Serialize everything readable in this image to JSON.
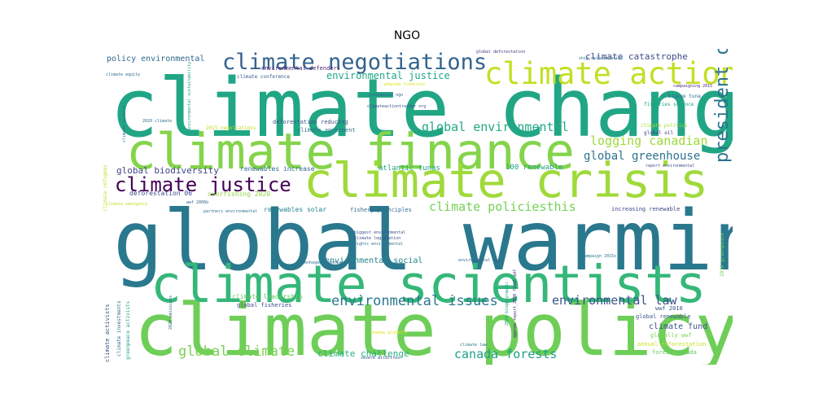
{
  "chart_data": {
    "type": "wordcloud",
    "title": "NGO",
    "colormap": "viridis",
    "background": "#ffffff",
    "words": [
      {
        "text": "global warming",
        "weight": 1.0,
        "color": "#2a788e",
        "rotated": false
      },
      {
        "text": "climate change",
        "weight": 0.97,
        "color": "#21a685",
        "rotated": false
      },
      {
        "text": "climate policy",
        "weight": 0.86,
        "color": "#6ece58",
        "rotated": false
      },
      {
        "text": "climate scientists",
        "weight": 0.62,
        "color": "#35b779",
        "rotated": false
      },
      {
        "text": "climate finance",
        "weight": 0.6,
        "color": "#84d44b",
        "rotated": false
      },
      {
        "text": "climate crisis",
        "weight": 0.58,
        "color": "#9fda3a",
        "rotated": false
      },
      {
        "text": "climate action",
        "weight": 0.36,
        "color": "#c2df23",
        "rotated": false
      },
      {
        "text": "climate negotiations",
        "weight": 0.26,
        "color": "#33638d",
        "rotated": false
      },
      {
        "text": "climate justice",
        "weight": 0.24,
        "color": "#440154",
        "rotated": false
      },
      {
        "text": "president obama",
        "weight": 0.22,
        "color": "#2c728e",
        "rotated": true
      },
      {
        "text": "environmental issues",
        "weight": 0.17,
        "color": "#2a788e",
        "rotated": false
      },
      {
        "text": "global climate",
        "weight": 0.17,
        "color": "#7ad151",
        "rotated": false
      },
      {
        "text": "climate policiesthis",
        "weight": 0.15,
        "color": "#75d054",
        "rotated": false
      },
      {
        "text": "logging canadian",
        "weight": 0.15,
        "color": "#9dd93b",
        "rotated": false
      },
      {
        "text": "global environmental",
        "weight": 0.15,
        "color": "#22a884",
        "rotated": false
      },
      {
        "text": "environmental law",
        "weight": 0.15,
        "color": "#3b528b",
        "rotated": false
      },
      {
        "text": "canada forests",
        "weight": 0.15,
        "color": "#1f9e89",
        "rotated": false
      },
      {
        "text": "global greenhouse",
        "weight": 0.14,
        "color": "#2c728e",
        "rotated": false
      },
      {
        "text": "environmental justice",
        "weight": 0.12,
        "color": "#22a884",
        "rotated": false
      },
      {
        "text": "climate catastrophe",
        "weight": 0.11,
        "color": "#3e4a89",
        "rotated": false
      },
      {
        "text": "climate challenge",
        "weight": 0.11,
        "color": "#29af7f",
        "rotated": false
      },
      {
        "text": "global biodiversity",
        "weight": 0.11,
        "color": "#404688",
        "rotated": false
      },
      {
        "text": "climate fund",
        "weight": 0.1,
        "color": "#3b528b",
        "rotated": false
      },
      {
        "text": "environmental social",
        "weight": 0.1,
        "color": "#25848e",
        "rotated": false
      },
      {
        "text": "policy environmental",
        "weight": 0.1,
        "color": "#31688e",
        "rotated": false
      },
      {
        "text": "100 renewable",
        "weight": 0.09,
        "color": "#1fa187",
        "rotated": false
      },
      {
        "text": "atlantic tunas",
        "weight": 0.09,
        "color": "#20a486",
        "rotated": false
      },
      {
        "text": "renewables increase",
        "weight": 0.08,
        "color": "#31688e",
        "rotated": false
      },
      {
        "text": "climate leadership",
        "weight": 0.08,
        "color": "#5ec962",
        "rotated": false
      },
      {
        "text": "overfishing 2020",
        "weight": 0.08,
        "color": "#8fd744",
        "rotated": false
      },
      {
        "text": "deforestation 06",
        "weight": 0.08,
        "color": "#3e4a89",
        "rotated": false
      },
      {
        "text": "renewables solar",
        "weight": 0.08,
        "color": "#26828e",
        "rotated": false
      },
      {
        "text": "global fisheries",
        "weight": 0.07,
        "color": "#3e4a89",
        "rotated": false
      },
      {
        "text": "deforestation reducing",
        "weight": 0.07,
        "color": "#3b528b",
        "rotated": false
      },
      {
        "text": "climate agreement",
        "weight": 0.07,
        "color": "#2c728e",
        "rotated": false
      },
      {
        "text": "fishery principles",
        "weight": 0.07,
        "color": "#31688e",
        "rotated": false
      },
      {
        "text": "increasing renewable",
        "weight": 0.07,
        "color": "#404688",
        "rotated": false
      },
      {
        "text": "wwf 2010",
        "weight": 0.07,
        "color": "#3b528b",
        "rotated": false
      },
      {
        "text": "global renewable",
        "weight": 0.07,
        "color": "#3b528b",
        "rotated": false
      },
      {
        "text": "globally wwf",
        "weight": 0.07,
        "color": "#7ad151",
        "rotated": false
      },
      {
        "text": "forest canada",
        "weight": 0.07,
        "color": "#5ec962",
        "rotated": false
      },
      {
        "text": "annual reforestation",
        "weight": 0.07,
        "color": "#c8e020",
        "rotated": false
      },
      {
        "text": "climate activists",
        "weight": 0.07,
        "color": "#3b528b",
        "rotated": true
      },
      {
        "text": "environmental defenders",
        "weight": 0.07,
        "color": "#481f70",
        "rotated": false
      },
      {
        "text": "climate conference",
        "weight": 0.06,
        "color": "#355f8d",
        "rotated": false
      },
      {
        "text": "2015 negotiations",
        "weight": 0.06,
        "color": "#c2df23",
        "rotated": false
      },
      {
        "text": "bigeye tuna",
        "weight": 0.06,
        "color": "#31688e",
        "rotated": false
      },
      {
        "text": "fisheries science",
        "weight": 0.06,
        "color": "#1fa187",
        "rotated": false
      },
      {
        "text": "climate politics",
        "weight": 0.06,
        "color": "#a5db36",
        "rotated": false
      },
      {
        "text": "global oil",
        "weight": 0.06,
        "color": "#443983",
        "rotated": false
      },
      {
        "text": "global deforestation",
        "weight": 0.05,
        "color": "#46327e",
        "rotated": false
      },
      {
        "text": "climate refugees",
        "weight": 0.06,
        "color": "#c2df23",
        "rotated": true
      },
      {
        "text": "climate investments",
        "weight": 0.06,
        "color": "#31688e",
        "rotated": true
      },
      {
        "text": "greenpeace activists",
        "weight": 0.06,
        "color": "#1f9e89",
        "rotated": true
      },
      {
        "text": "2010 greenpeace",
        "weight": 0.06,
        "color": "#6ece58",
        "rotated": true
      },
      {
        "text": "severe wildfires",
        "weight": 0.04,
        "color": "#3b528b",
        "rotated": false
      },
      {
        "text": "partners environmental",
        "weight": 0.04,
        "color": "#2c728e",
        "rotated": false
      },
      {
        "text": "biggest environmental",
        "weight": 0.04,
        "color": "#3b528b",
        "rotated": false
      },
      {
        "text": "climate legislation",
        "weight": 0.04,
        "color": "#3e4a89",
        "rotated": false
      },
      {
        "text": "rights environmental",
        "weight": 0.04,
        "color": "#2c728e",
        "rotated": false
      },
      {
        "text": "campaign 2015s",
        "weight": 0.04,
        "color": "#2c728e",
        "rotated": false
      },
      {
        "text": "climate law",
        "weight": 0.035,
        "color": "#2c728e",
        "rotated": false
      },
      {
        "text": "report environmental",
        "weight": 0.035,
        "color": "#3e4a89",
        "rotated": false
      },
      {
        "text": "campaigning 2015",
        "weight": 0.035,
        "color": "#482878",
        "rotated": false
      },
      {
        "text": "climateactiontracker org",
        "weight": 0.035,
        "color": "#3e4a89",
        "rotated": false
      },
      {
        "text": "adopted fisheries",
        "weight": 0.035,
        "color": "#d8e219",
        "rotated": false
      },
      {
        "text": "greenpeace ngo",
        "weight": 0.035,
        "color": "#31688e",
        "rotated": false
      },
      {
        "text": "ship deforestation",
        "weight": 0.035,
        "color": "#2c728e",
        "rotated": false
      },
      {
        "text": "climate equity",
        "weight": 0.035,
        "color": "#31688e",
        "rotated": false
      },
      {
        "text": "wwf 2006b",
        "weight": 0.035,
        "color": "#31688e",
        "rotated": false
      },
      {
        "text": "climate emergency",
        "weight": 0.035,
        "color": "#c2df23",
        "rotated": false
      },
      {
        "text": "copenhagen negotiating",
        "weight": 0.035,
        "color": "#2c728e",
        "rotated": false
      },
      {
        "text": "environmental ngos",
        "weight": 0.035,
        "color": "#31688e",
        "rotated": false
      },
      {
        "text": "shadow globally",
        "weight": 0.035,
        "color": "#e5e419",
        "rotated": false
      },
      {
        "text": "2020 climate",
        "weight": 0.035,
        "color": "#2c728e",
        "rotated": false
      },
      {
        "text": "climate science",
        "weight": 0.035,
        "color": "#31688e",
        "rotated": true
      },
      {
        "text": "environmental sustainability",
        "weight": 0.035,
        "color": "#1fa187",
        "rotated": true
      },
      {
        "text": "2020 emissions",
        "weight": 0.035,
        "color": "#31688e",
        "rotated": true
      },
      {
        "text": "agenda report_2020 final pdf",
        "weight": 0.035,
        "color": "#482878",
        "rotated": true
      },
      {
        "text": "2020 biogeographic",
        "weight": 0.035,
        "color": "#1f9e89",
        "rotated": true
      }
    ]
  }
}
